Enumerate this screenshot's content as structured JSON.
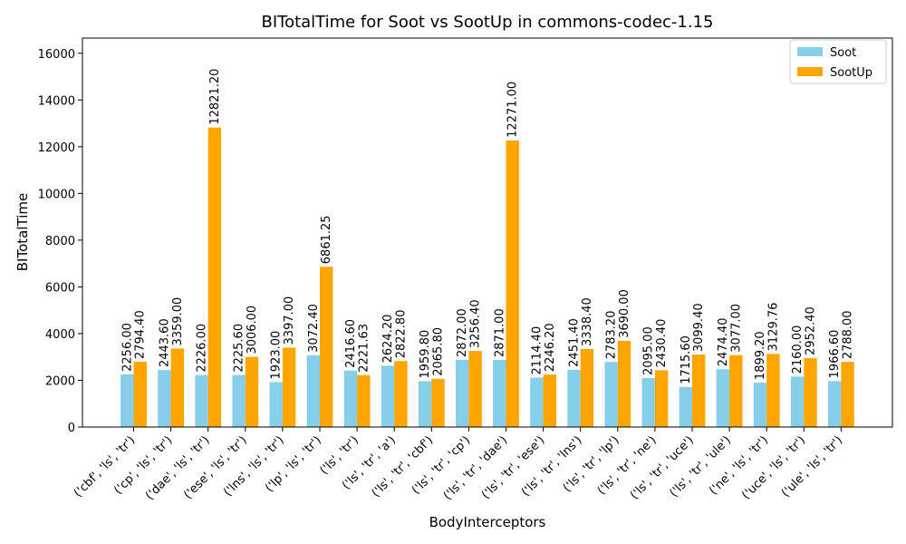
{
  "chart_data": {
    "type": "bar",
    "title": "BITotalTime for Soot vs SootUp in commons-codec-1.15",
    "xlabel": "BodyInterceptors",
    "ylabel": "BITotalTime",
    "ylim": [
      0,
      16650
    ],
    "yticks": [
      0,
      2000,
      4000,
      6000,
      8000,
      10000,
      12000,
      14000,
      16000
    ],
    "grid": false,
    "legend_position": "top-right",
    "categories": [
      "('cbf', 'ls', 'tr')",
      "('cp', 'ls', 'tr')",
      "('dae', 'ls', 'tr')",
      "('ese', 'ls', 'tr')",
      "('lns', 'ls', 'tr')",
      "('lp', 'ls', 'tr')",
      "('ls', 'tr')",
      "('ls', 'tr', 'a')",
      "('ls', 'tr', 'cbf')",
      "('ls', 'tr', 'cp')",
      "('ls', 'tr', 'dae')",
      "('ls', 'tr', 'ese')",
      "('ls', 'tr', 'lns')",
      "('ls', 'tr', 'lp')",
      "('ls', 'tr', 'ne')",
      "('ls', 'tr', 'uce')",
      "('ls', 'tr', 'ule')",
      "('ne', 'ls', 'tr')",
      "('uce', 'ls', 'tr')",
      "('ule', 'ls', 'tr')"
    ],
    "series": [
      {
        "name": "Soot",
        "color": "#87ceeb",
        "values": [
          2256.0,
          2443.6,
          2226.0,
          2225.6,
          1923.0,
          3072.4,
          2416.6,
          2624.2,
          1959.8,
          2872.0,
          2871.0,
          2114.4,
          2451.4,
          2783.2,
          2095.0,
          1715.6,
          2474.4,
          1899.2,
          2160.0,
          1966.6
        ],
        "labels": [
          "2256.00",
          "2443.60",
          "2226.00",
          "2225.60",
          "1923.00",
          "3072.40",
          "2416.60",
          "2624.20",
          "1959.80",
          "2872.00",
          "2871.00",
          "2114.40",
          "2451.40",
          "2783.20",
          "2095.00",
          "1715.60",
          "2474.40",
          "1899.20",
          "2160.00",
          "1966.60"
        ]
      },
      {
        "name": "SootUp",
        "color": "#ffa500",
        "values": [
          2794.4,
          3359.0,
          12821.2,
          3006.0,
          3397.0,
          6861.25,
          2221.63,
          2822.8,
          2065.8,
          3256.4,
          12271.0,
          2246.2,
          3338.4,
          3690.0,
          2430.4,
          3099.4,
          3077.0,
          3129.76,
          2952.4,
          2788.0
        ],
        "labels": [
          "2794.40",
          "3359.00",
          "12821.20",
          "3006.00",
          "3397.00",
          "6861.25",
          "2221.63",
          "2822.80",
          "2065.80",
          "3256.40",
          "12271.00",
          "2246.20",
          "3338.40",
          "3690.00",
          "2430.40",
          "3099.40",
          "3077.00",
          "3129.76",
          "2952.40",
          "2788.00"
        ]
      }
    ]
  }
}
